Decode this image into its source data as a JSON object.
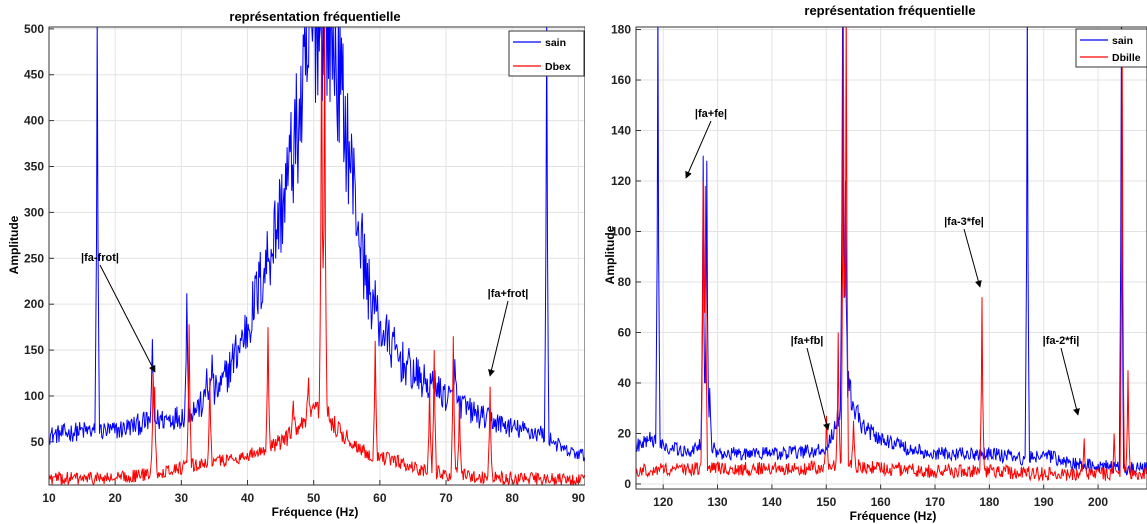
{
  "chart_data": [
    {
      "type": "line",
      "title": "représentation fréquentielle",
      "xlabel": "Fréquence (Hz)",
      "ylabel": "Amplitude",
      "xlim": [
        10,
        91
      ],
      "ylim": [
        3,
        502
      ],
      "xticks": [
        10,
        20,
        30,
        40,
        50,
        60,
        70,
        80,
        90
      ],
      "yticks": [
        50,
        100,
        150,
        200,
        250,
        300,
        350,
        400,
        450,
        500
      ],
      "grid": true,
      "legend_position": "top-right",
      "series": [
        {
          "name": "sain",
          "color": "#0000ff",
          "baseline": [
            [
              10,
              57
            ],
            [
              15,
              62
            ],
            [
              20,
              62
            ],
            [
              25,
              72
            ],
            [
              30,
              78
            ],
            [
              33,
              90
            ],
            [
              36,
              110
            ],
            [
              40,
              175
            ],
            [
              43,
              250
            ],
            [
              45,
              300
            ],
            [
              47,
              370
            ],
            [
              48.5,
              430
            ],
            [
              49.5,
              480
            ],
            [
              50.5,
              510
            ],
            [
              51.5,
              510
            ],
            [
              52.5,
              500
            ],
            [
              54,
              440
            ],
            [
              55,
              385
            ],
            [
              56,
              330
            ],
            [
              57,
              275
            ],
            [
              58,
              225
            ],
            [
              60,
              175
            ],
            [
              63,
              140
            ],
            [
              66,
              118
            ],
            [
              70,
              100
            ],
            [
              75,
              78
            ],
            [
              80,
              65
            ],
            [
              85,
              58
            ],
            [
              88,
              40
            ],
            [
              91,
              35
            ]
          ],
          "peaks": [
            [
              17.3,
              510
            ],
            [
              25.6,
              162
            ],
            [
              30.8,
              212
            ],
            [
              33.8,
              130
            ],
            [
              34.7,
              145
            ],
            [
              43.2,
              165
            ],
            [
              59.3,
              200
            ],
            [
              67.8,
              108
            ],
            [
              68.3,
              128
            ],
            [
              71.3,
              140
            ],
            [
              85.2,
              510
            ]
          ]
        },
        {
          "name": "Dbex",
          "color": "#ff0000",
          "baseline": [
            [
              10,
              10
            ],
            [
              20,
              10
            ],
            [
              25,
              15
            ],
            [
              30,
              22
            ],
            [
              35,
              28
            ],
            [
              40,
              35
            ],
            [
              45,
              50
            ],
            [
              48,
              65
            ],
            [
              50,
              80
            ],
            [
              51,
              85
            ],
            [
              52,
              80
            ],
            [
              54,
              60
            ],
            [
              56,
              48
            ],
            [
              58,
              38
            ],
            [
              62,
              30
            ],
            [
              66,
              20
            ],
            [
              70,
              15
            ],
            [
              75,
              12
            ],
            [
              80,
              10
            ],
            [
              85,
              9
            ],
            [
              91,
              8
            ]
          ],
          "peaks": [
            [
              25.7,
              125
            ],
            [
              26,
              110
            ],
            [
              31.2,
              178
            ],
            [
              34.3,
              120
            ],
            [
              43.1,
              175
            ],
            [
              46.9,
              95
            ],
            [
              49.2,
              120
            ],
            [
              51.2,
              510
            ],
            [
              51.6,
              510
            ],
            [
              55,
              60
            ],
            [
              59.3,
              160
            ],
            [
              67.5,
              110
            ],
            [
              68.2,
              150
            ],
            [
              71.1,
              165
            ],
            [
              72,
              95
            ],
            [
              76.6,
              110
            ]
          ]
        }
      ],
      "annotations": [
        {
          "text": "|fa-frot|",
          "x": 25.7,
          "y": 125
        },
        {
          "text": "|fa+frot|",
          "x": 76.6,
          "y": 110
        }
      ]
    },
    {
      "type": "line",
      "title": "représentation fréquentielle",
      "xlabel": "Fréquence (Hz)",
      "ylabel": "Amplitude",
      "xlim": [
        115,
        209
      ],
      "ylim": [
        -2,
        181
      ],
      "xticks": [
        120,
        130,
        140,
        150,
        160,
        170,
        180,
        190,
        200
      ],
      "yticks": [
        0,
        20,
        40,
        60,
        80,
        100,
        120,
        140,
        160,
        180
      ],
      "grid": true,
      "legend_position": "top-right",
      "series": [
        {
          "name": "sain",
          "color": "#0000ff",
          "baseline": [
            [
              115,
              15
            ],
            [
              118,
              18
            ],
            [
              121,
              14
            ],
            [
              125,
              13
            ],
            [
              128,
              18
            ],
            [
              130,
              12
            ],
            [
              140,
              12
            ],
            [
              148,
              13
            ],
            [
              150,
              14
            ],
            [
              152,
              25
            ],
            [
              153,
              35
            ],
            [
              154,
              40
            ],
            [
              155,
              30
            ],
            [
              157,
              22
            ],
            [
              160,
              18
            ],
            [
              165,
              14
            ],
            [
              170,
              12
            ],
            [
              180,
              12
            ],
            [
              186,
              10
            ],
            [
              190,
              12
            ],
            [
              195,
              8
            ],
            [
              200,
              7
            ],
            [
              209,
              6
            ]
          ],
          "peaks": [
            [
              119,
              190
            ],
            [
              127.3,
              130
            ],
            [
              128,
              128
            ],
            [
              128.6,
              38
            ],
            [
              153,
              190
            ],
            [
              153.6,
              120
            ],
            [
              187,
              190
            ],
            [
              204.3,
              190
            ]
          ]
        },
        {
          "name": "Dbille",
          "color": "#ff0000",
          "baseline": [
            [
              115,
              5
            ],
            [
              125,
              6
            ],
            [
              135,
              6
            ],
            [
              145,
              6
            ],
            [
              150,
              7
            ],
            [
              153,
              8
            ],
            [
              160,
              6
            ],
            [
              170,
              5
            ],
            [
              180,
              5
            ],
            [
              190,
              4
            ],
            [
              200,
              4
            ],
            [
              209,
              4
            ]
          ],
          "peaks": [
            [
              127.4,
              120
            ],
            [
              127.8,
              118
            ],
            [
              150,
              27
            ],
            [
              152.2,
              60
            ],
            [
              153.1,
              190
            ],
            [
              153.7,
              190
            ],
            [
              155,
              25
            ],
            [
              178.6,
              74
            ],
            [
              197.5,
              18
            ],
            [
              203,
              20
            ],
            [
              204.4,
              170
            ],
            [
              205.5,
              45
            ]
          ]
        }
      ],
      "annotations": [
        {
          "text": "|fa+fe|",
          "x": 127.6,
          "y": 120
        },
        {
          "text": "|fa+fb|",
          "x": 150,
          "y": 27
        },
        {
          "text": "|fa-3*fe|",
          "x": 178.6,
          "y": 74
        },
        {
          "text": "|fa-2*fi|",
          "x": 197.5,
          "y": 18
        }
      ]
    }
  ]
}
